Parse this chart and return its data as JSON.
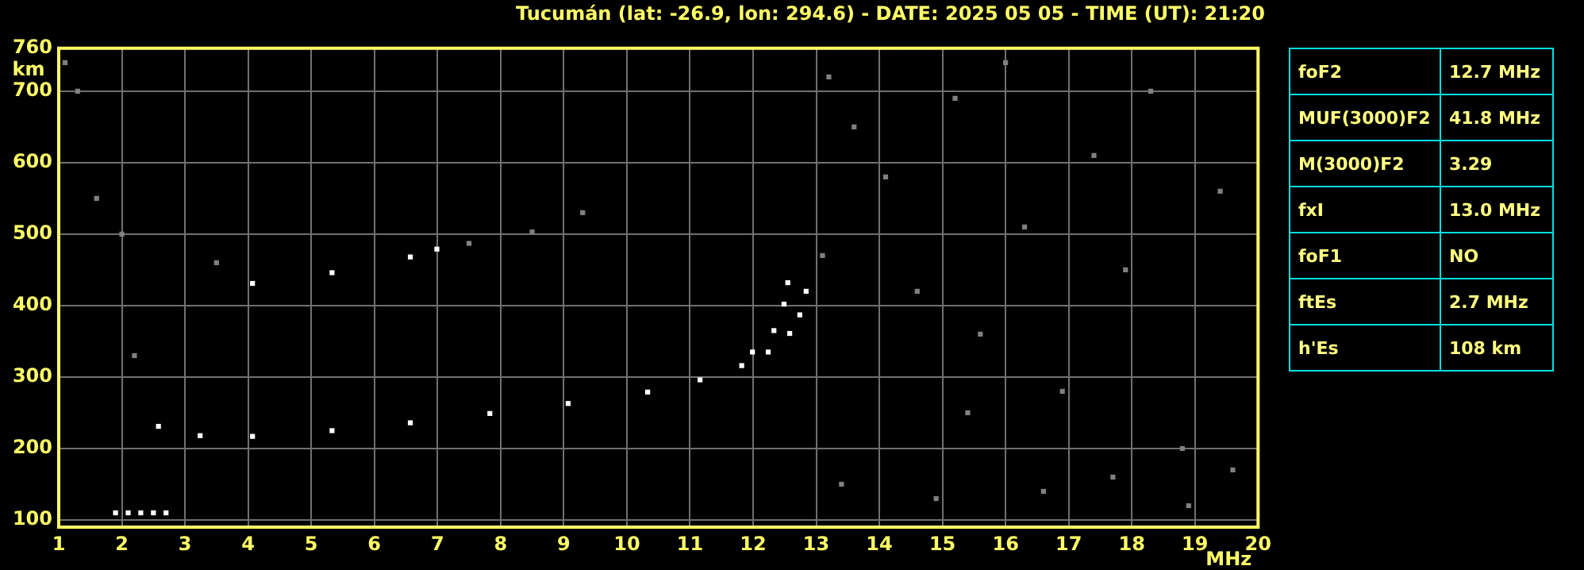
{
  "chart_data": {
    "type": "scatter",
    "title": "Tucumán (lat: -26.9, lon: 294.6) - DATE: 2025 05 05 - TIME (UT): 21:20",
    "xlabel": "MHz",
    "ylabel": "km",
    "xlim": [
      1,
      20
    ],
    "xticks": [
      1,
      2,
      3,
      4,
      5,
      6,
      7,
      8,
      9,
      10,
      11,
      12,
      13,
      14,
      15,
      16,
      17,
      18,
      19,
      20
    ],
    "ylim": [
      90,
      760
    ],
    "yticks": [
      100,
      200,
      300,
      400,
      500,
      600,
      700,
      760
    ],
    "grid": true,
    "legend": false,
    "marker": "square",
    "series": [
      {
        "color": "#ffffff",
        "x": [
          2.58,
          3.24,
          4.07,
          5.33,
          6.57,
          7.83,
          9.07,
          10.33,
          11.16,
          11.82,
          11.99,
          12.33,
          12.49,
          12.55
        ],
        "values": [
          231,
          218,
          217,
          225,
          236,
          249,
          263,
          279,
          296,
          316,
          335,
          365,
          402,
          432
        ]
      },
      {
        "color": "#ffffff",
        "x": [
          12.24,
          12.58,
          12.74,
          12.84
        ],
        "values": [
          335,
          361,
          387,
          420
        ]
      },
      {
        "color": "#ffffff",
        "x": [
          4.07,
          5.33,
          6.57,
          6.99
        ],
        "values": [
          431,
          446,
          468,
          479
        ]
      },
      {
        "color": "#808080",
        "x": [
          7.5,
          8.5,
          9.3
        ],
        "values": [
          487,
          503,
          530
        ]
      },
      {
        "color": "#ffffff",
        "x": [
          1.9,
          2.1,
          2.3,
          2.5,
          2.7
        ],
        "values": [
          110,
          110,
          110,
          110,
          110
        ]
      },
      {
        "color": "#808080",
        "x": [
          1.1,
          1.3,
          1.6,
          2.0,
          2.2,
          3.5,
          13.2,
          13.6,
          14.1,
          14.6,
          15.2,
          15.6,
          16.0,
          16.3,
          16.9,
          17.4,
          17.9,
          18.3,
          18.8,
          19.4,
          13.4,
          14.9,
          16.6,
          17.7,
          18.9,
          19.6,
          13.1,
          15.4
        ],
        "values": [
          740,
          700,
          550,
          500,
          330,
          460,
          720,
          650,
          580,
          420,
          690,
          360,
          740,
          510,
          280,
          610,
          450,
          700,
          200,
          560,
          150,
          130,
          140,
          160,
          120,
          170,
          470,
          250
        ]
      }
    ],
    "annotations": [
      "foF2",
      "12.7 MHz",
      "MUF(3000)F2",
      "41.8 MHz",
      "M(3000)F2",
      "3.29",
      "fxI",
      "13.0 MHz",
      "foF1",
      "NO",
      "ftEs",
      "2.7 MHz",
      "h'Es",
      "108 km"
    ]
  }
}
